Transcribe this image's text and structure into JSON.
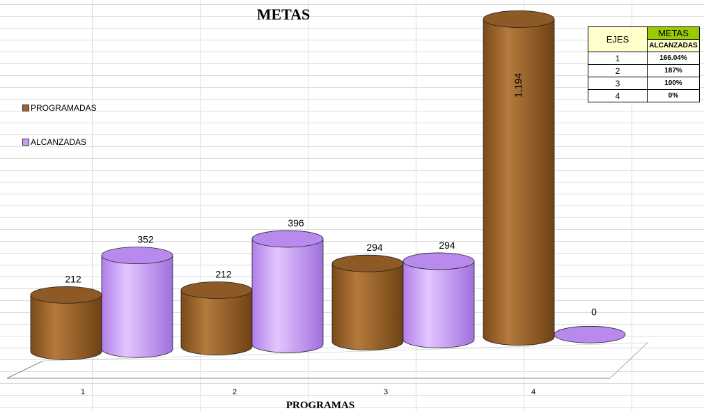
{
  "chart_data": {
    "type": "bar",
    "title": "METAS",
    "xlabel": "PROGRAMAS",
    "ylabel": "",
    "categories": [
      "1",
      "2",
      "3",
      "4"
    ],
    "series": [
      {
        "name": "PROGRAMADAS",
        "values": [
          212,
          212,
          294,
          1194
        ],
        "labels": [
          "212",
          "212",
          "294",
          "1,194"
        ]
      },
      {
        "name": "ALCANZADAS",
        "values": [
          352,
          396,
          294,
          0
        ],
        "labels": [
          "352",
          "396",
          "294",
          "0"
        ]
      }
    ],
    "legend": "left",
    "grid": true
  },
  "colors": {
    "programadas": "#a0652a",
    "alcanzadas": "#cc99ff"
  },
  "table": {
    "header_ejes": "EJES",
    "header_metas": "METAS",
    "header_sub": "ALCANZADAS",
    "rows": [
      {
        "eje": "1",
        "valor": "166.04%"
      },
      {
        "eje": "2",
        "valor": "187%"
      },
      {
        "eje": "3",
        "valor": "100%"
      },
      {
        "eje": "4",
        "valor": "0%"
      }
    ]
  }
}
